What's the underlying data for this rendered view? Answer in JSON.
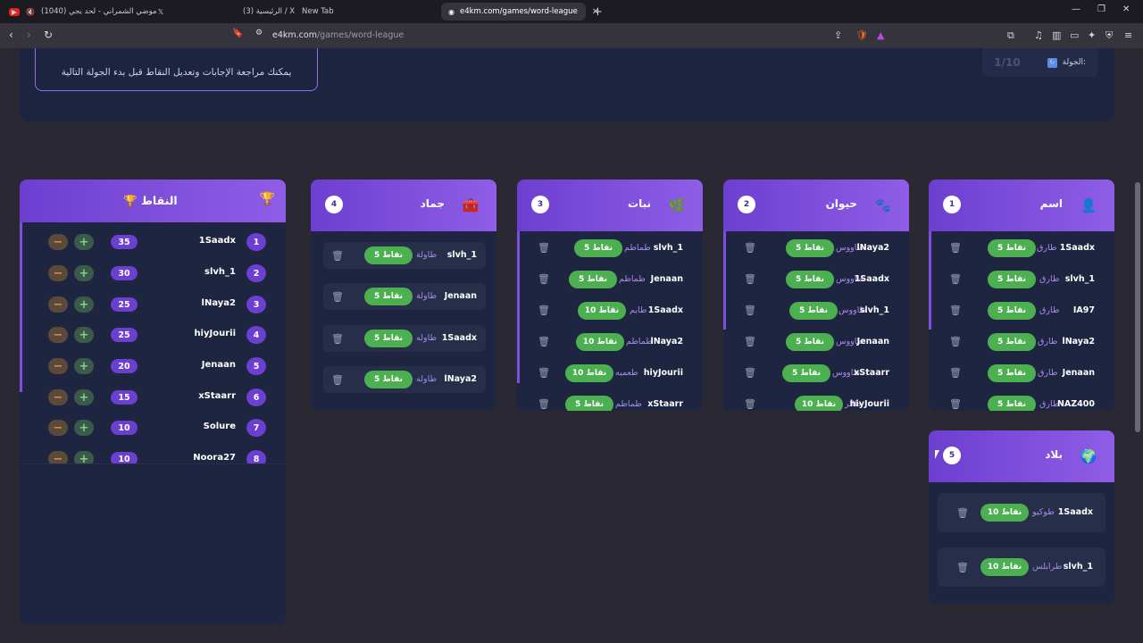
{
  "browser": {
    "tabs": [
      {
        "label": "(1040) موضي الشمراني - لحد يجي",
        "icon": "youtube-icon"
      },
      {
        "label": "(3) الرئيسية / X",
        "icon": "x-icon"
      },
      {
        "label": "New Tab",
        "icon": ""
      },
      {
        "label": "e4km.com/games/word-league",
        "icon": "globe-icon",
        "active": true
      }
    ],
    "url_domain": "e4km.com",
    "url_path": "/games/word-league"
  },
  "top": {
    "notice": "يمكنك مراجعة الإجابات وتعديل النقاط قبل بدء الجولة التالية",
    "round_label": "الجولة:",
    "round_value": "1/10"
  },
  "categories": [
    {
      "num": "1",
      "title": "اسم",
      "icon": "person-icon",
      "entries": [
        {
          "player": "1Saadx",
          "word": "طارق",
          "points": "5 نقاط"
        },
        {
          "player": "slvh_1",
          "word": "طارق",
          "points": "5 نقاط"
        },
        {
          "player": "IA97",
          "word": "طارق",
          "points": "5 نقاط"
        },
        {
          "player": "lNaya2",
          "word": "طارق",
          "points": "5 نقاط"
        },
        {
          "player": "Jenaan",
          "word": "طارق",
          "points": "5 نقاط"
        },
        {
          "player": "NAZ400",
          "word": "طارق",
          "points": "5 نقاط"
        }
      ]
    },
    {
      "num": "2",
      "title": "حيوان",
      "icon": "paw-icon",
      "entries": [
        {
          "player": "lNaya2",
          "word": "طاووس",
          "points": "5 نقاط"
        },
        {
          "player": "1Saadx",
          "word": "طاووس",
          "points": "5 نقاط"
        },
        {
          "player": "slvh_1",
          "word": "طاووس",
          "points": "5 نقاط"
        },
        {
          "player": "Jenaan",
          "word": "طاووس",
          "points": "5 نقاط"
        },
        {
          "player": "xStaarr",
          "word": "طاووس",
          "points": "5 نقاط"
        },
        {
          "player": "hiyJourii",
          "word": "طائر",
          "points": "10 نقاط"
        }
      ]
    },
    {
      "num": "3",
      "title": "نبات",
      "icon": "leaf-icon",
      "entries": [
        {
          "player": "slvh_1",
          "word": "طماطم",
          "points": "5 نقاط"
        },
        {
          "player": "Jenaan",
          "word": "طماطم",
          "points": "5 نقاط"
        },
        {
          "player": "1Saadx",
          "word": "طايم",
          "points": "10 نقاط"
        },
        {
          "player": "lNaya2",
          "word": "طماطم",
          "points": "10 نقاط"
        },
        {
          "player": "hiyJourii",
          "word": "طعميه",
          "points": "10 نقاط"
        },
        {
          "player": "xStaarr",
          "word": "طماطم",
          "points": "5 نقاط"
        }
      ]
    },
    {
      "num": "4",
      "title": "جماد",
      "icon": "toolbox-icon",
      "entries": [
        {
          "player": "slvh_1",
          "word": "طاولة",
          "points": "5 نقاط"
        },
        {
          "player": "Jenaan",
          "word": "طاولة",
          "points": "5 نقاط"
        },
        {
          "player": "1Saadx",
          "word": "طاوله",
          "points": "5 نقاط"
        },
        {
          "player": "lNaya2",
          "word": "طاوله",
          "points": "5 نقاط"
        }
      ]
    },
    {
      "num": "5",
      "title": "بلاد",
      "icon": "globe-icon",
      "entries": [
        {
          "player": "1Saadx",
          "word": "طوكيو",
          "points": "10 نقاط"
        },
        {
          "player": "slvh_1",
          "word": "طرابلس",
          "points": "10 نقاط"
        }
      ]
    }
  ],
  "scores": {
    "title": "النقاط",
    "rows": [
      {
        "rank": "1",
        "name": "1Saadx",
        "score": "35"
      },
      {
        "rank": "2",
        "name": "slvh_1",
        "score": "30"
      },
      {
        "rank": "3",
        "name": "lNaya2",
        "score": "25"
      },
      {
        "rank": "4",
        "name": "hiyJourii",
        "score": "25"
      },
      {
        "rank": "5",
        "name": "Jenaan",
        "score": "20"
      },
      {
        "rank": "6",
        "name": "xStaarr",
        "score": "15"
      },
      {
        "rank": "7",
        "name": "Solure",
        "score": "10"
      },
      {
        "rank": "8",
        "name": "Noora27",
        "score": "10"
      }
    ]
  }
}
